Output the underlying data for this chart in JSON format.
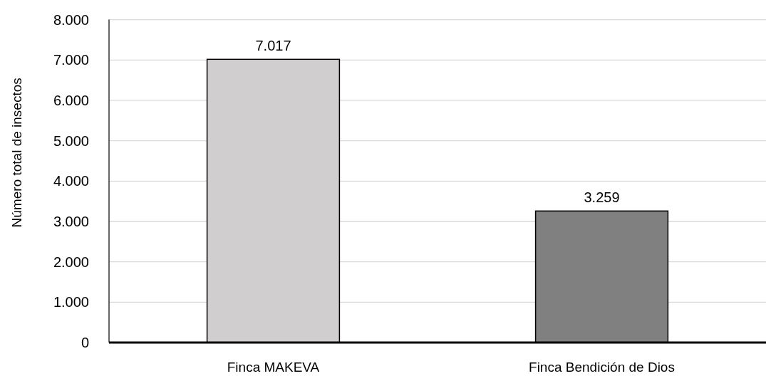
{
  "chart_data": {
    "type": "bar",
    "ylabel": "Número total de insectos",
    "categories": [
      "Finca MAKEVA",
      "Finca Bendición de Dios"
    ],
    "values": [
      7017,
      3259
    ],
    "colors": [
      "#d0cece",
      "#808080"
    ],
    "value_labels": [
      "7.017",
      "3.259"
    ],
    "ylim": [
      0,
      8000
    ],
    "yticks": [
      0,
      {
        "value": 1000,
        "label": "1.000"
      },
      {
        "value": 2000,
        "label": "2.000"
      },
      {
        "value": 3000,
        "label": "3.000"
      },
      {
        "value": 4000,
        "label": "4.000"
      },
      {
        "value": 5000,
        "label": "5.000"
      },
      {
        "value": 6000,
        "label": "6.000"
      },
      {
        "value": 7000,
        "label": "7.000"
      },
      {
        "value": 8000,
        "label": "8.000"
      }
    ],
    "grid": "y"
  }
}
